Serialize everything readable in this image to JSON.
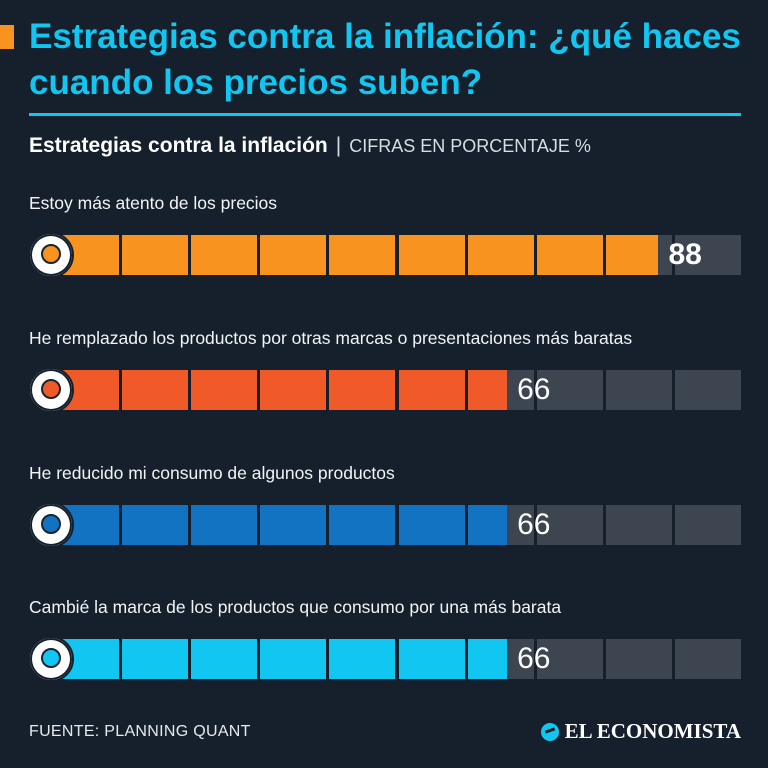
{
  "header": {
    "title": "Estrategias contra la inflación: ¿qué haces cuando los precios suben?",
    "subtitle_bold": "Estrategias contra la inflación",
    "subtitle_separator": "|",
    "subtitle_light": "CIFRAS EN PORCENTAJE %"
  },
  "colors": {
    "accent": "#f7931e",
    "title": "#12c6f2",
    "track": "#3c4550",
    "background": "#16202c"
  },
  "chart_data": {
    "type": "bar",
    "orientation": "horizontal",
    "title": "Estrategias contra la inflación",
    "units": "%",
    "xlim": [
      0,
      100
    ],
    "segments": 10,
    "categories": [
      "Estoy más atento de los precios",
      "He remplazado los productos por otras marcas o presentaciones más baratas",
      "He reducido mi consumo de algunos productos",
      "Cambié la marca de los productos que consumo por una más barata"
    ],
    "values": [
      88,
      66,
      66,
      66
    ],
    "value_labels": [
      "88",
      "66",
      "66",
      "66"
    ],
    "bar_colors": [
      "#f7931e",
      "#f05a28",
      "#1273c2",
      "#12c6f2"
    ],
    "icons": [
      "dollar-coin-hand-icon",
      "price-swap-icon",
      "shopping-bag-icon",
      "product-box-icon"
    ]
  },
  "footer": {
    "source": "FUENTE: PLANNING QUANT",
    "brand": "EL ECONOMISTA"
  }
}
